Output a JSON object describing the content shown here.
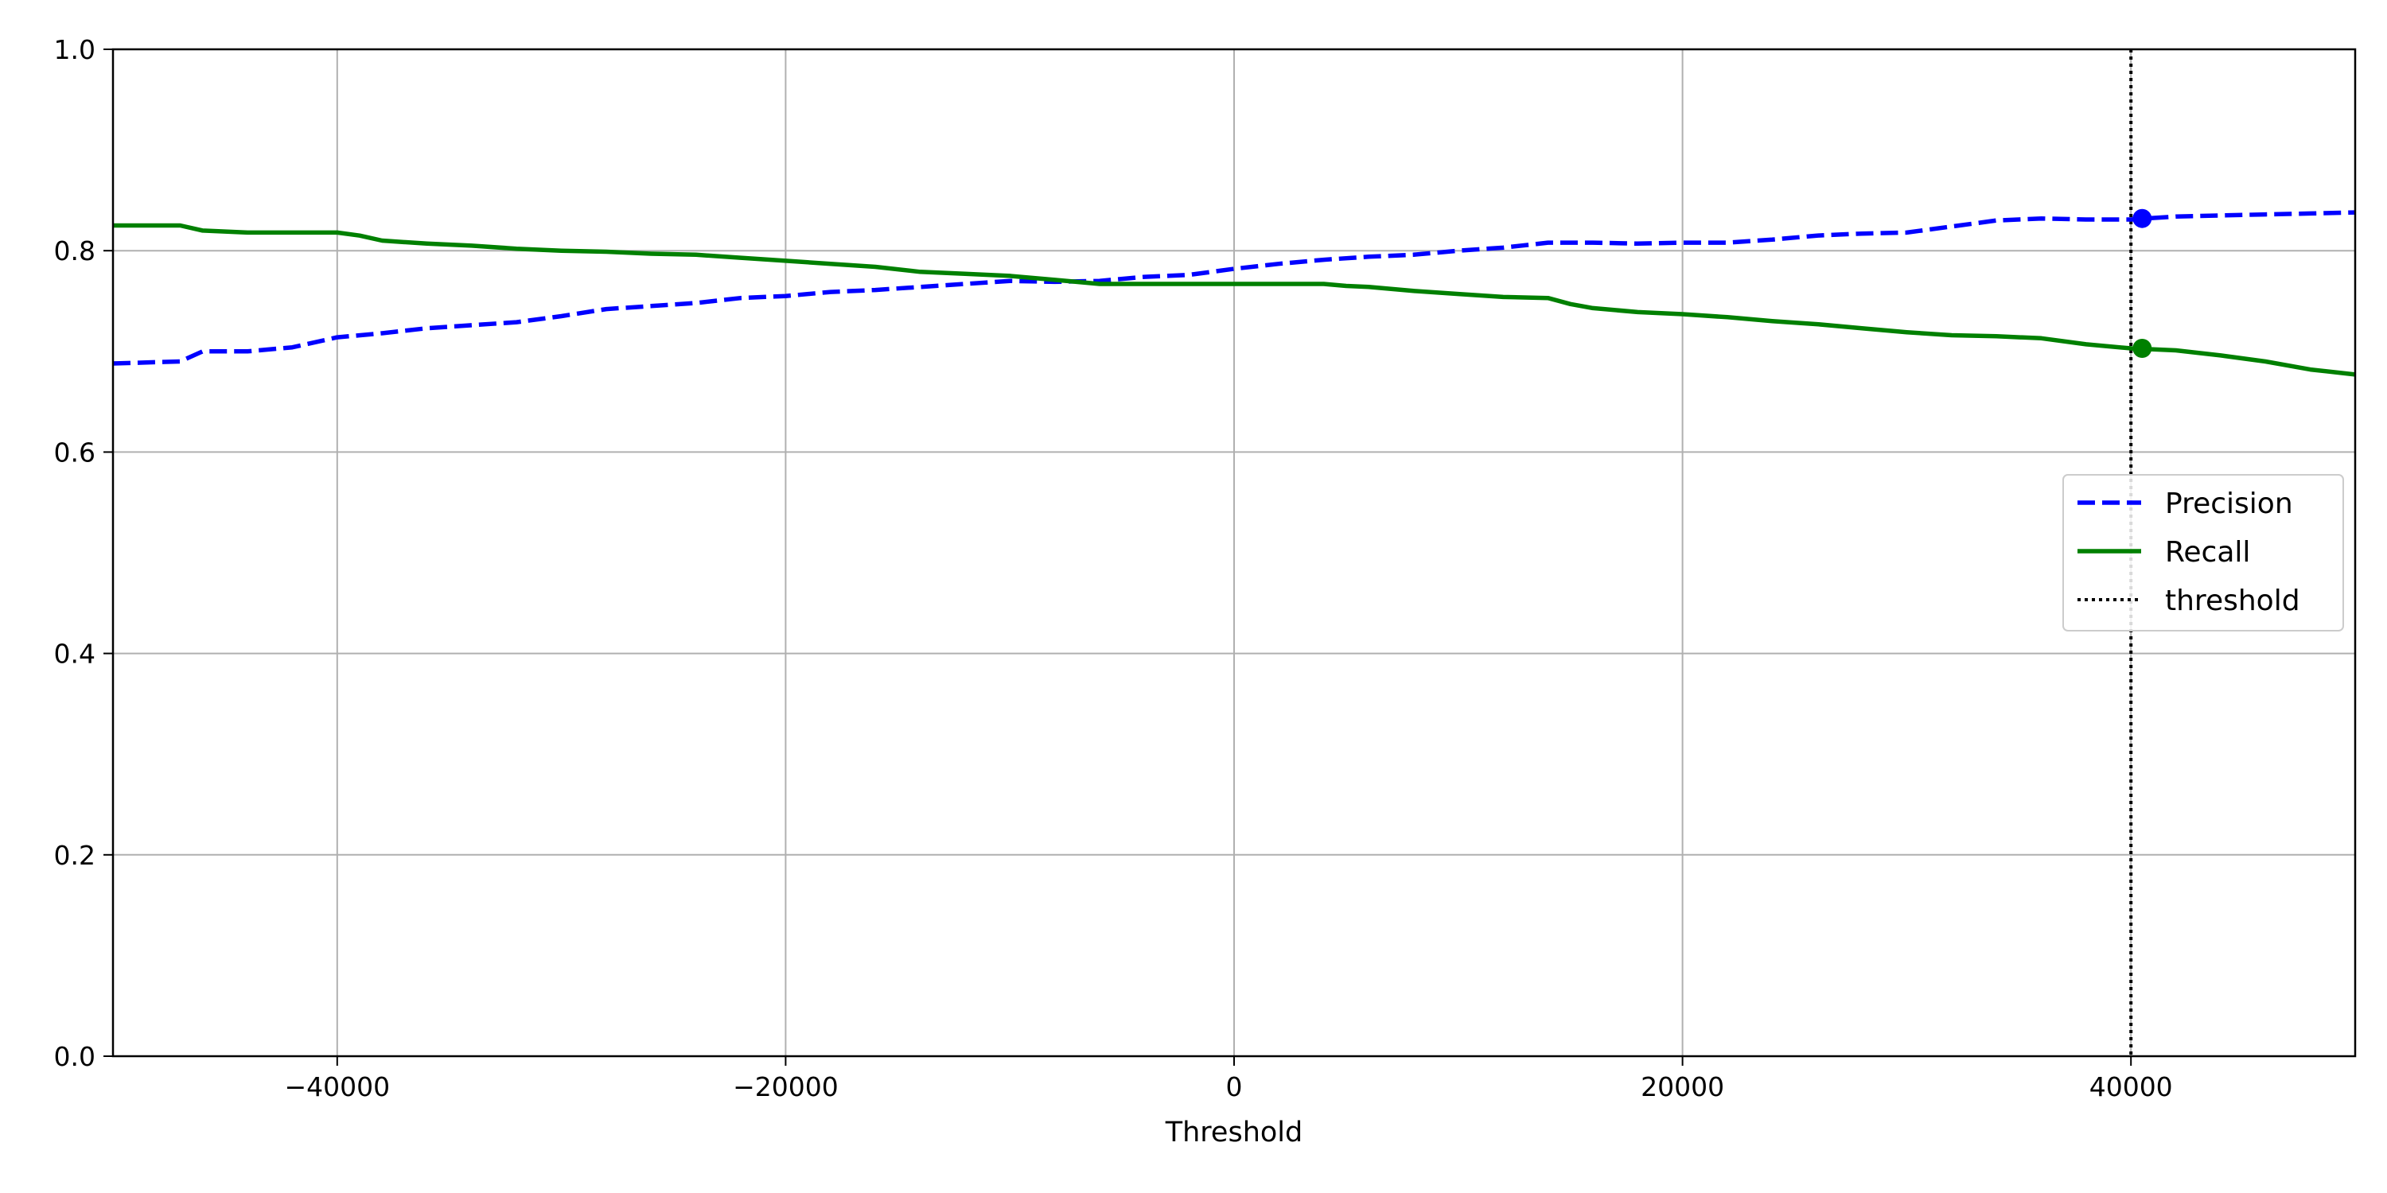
{
  "chart_data": {
    "type": "line",
    "title": "",
    "xlabel": "Threshold",
    "ylabel": "",
    "xlim": [
      -50000,
      50000
    ],
    "ylim": [
      0.0,
      1.0
    ],
    "grid": true,
    "legend_position": "center-right",
    "x_ticks": [
      -40000,
      -20000,
      0,
      20000,
      40000
    ],
    "x_tick_labels": [
      "−40000",
      "−20000",
      "0",
      "20000",
      "40000"
    ],
    "y_ticks": [
      0.0,
      0.2,
      0.4,
      0.6,
      0.8,
      1.0
    ],
    "y_tick_labels": [
      "0.0",
      "0.2",
      "0.4",
      "0.6",
      "0.8",
      "1.0"
    ],
    "series": [
      {
        "name": "Precision",
        "color": "#0000ff",
        "style": "dashed",
        "x": [
          -50000,
          -47000,
          -46000,
          -44000,
          -42000,
          -40000,
          -38000,
          -36000,
          -34000,
          -32000,
          -30000,
          -28000,
          -26000,
          -24000,
          -22000,
          -20000,
          -18000,
          -16000,
          -14000,
          -12000,
          -10000,
          -8000,
          -6000,
          -4000,
          -2000,
          0,
          2000,
          4000,
          6000,
          8000,
          10000,
          12000,
          14000,
          16000,
          18000,
          20000,
          22000,
          24000,
          26000,
          28000,
          30000,
          32000,
          34000,
          36000,
          38000,
          40000,
          42000,
          44000,
          46000,
          48000,
          50000
        ],
        "values": [
          0.688,
          0.69,
          0.7,
          0.7,
          0.704,
          0.714,
          0.718,
          0.723,
          0.726,
          0.729,
          0.735,
          0.742,
          0.745,
          0.748,
          0.753,
          0.755,
          0.759,
          0.761,
          0.764,
          0.767,
          0.77,
          0.769,
          0.77,
          0.774,
          0.776,
          0.782,
          0.787,
          0.791,
          0.794,
          0.796,
          0.8,
          0.803,
          0.808,
          0.808,
          0.807,
          0.808,
          0.808,
          0.811,
          0.815,
          0.817,
          0.818,
          0.824,
          0.83,
          0.832,
          0.831,
          0.831,
          0.834,
          0.835,
          0.836,
          0.837,
          0.838
        ]
      },
      {
        "name": "Recall",
        "color": "#008000",
        "style": "solid",
        "x": [
          -50000,
          -47000,
          -46000,
          -44000,
          -42000,
          -40000,
          -39000,
          -38000,
          -36000,
          -34000,
          -32000,
          -30000,
          -28000,
          -26000,
          -24000,
          -22000,
          -20000,
          -18000,
          -16000,
          -14000,
          -12000,
          -10000,
          -8000,
          -6000,
          -4000,
          -2000,
          0,
          2000,
          4000,
          5000,
          6000,
          8000,
          10000,
          12000,
          14000,
          15000,
          16000,
          18000,
          20000,
          22000,
          24000,
          26000,
          28000,
          30000,
          32000,
          34000,
          36000,
          38000,
          40000,
          42000,
          44000,
          46000,
          48000,
          50000
        ],
        "values": [
          0.825,
          0.825,
          0.82,
          0.818,
          0.818,
          0.818,
          0.815,
          0.81,
          0.807,
          0.805,
          0.802,
          0.8,
          0.799,
          0.797,
          0.796,
          0.793,
          0.79,
          0.787,
          0.784,
          0.779,
          0.777,
          0.775,
          0.771,
          0.767,
          0.767,
          0.767,
          0.767,
          0.767,
          0.767,
          0.765,
          0.764,
          0.76,
          0.757,
          0.754,
          0.753,
          0.747,
          0.743,
          0.739,
          0.737,
          0.734,
          0.73,
          0.727,
          0.723,
          0.719,
          0.716,
          0.715,
          0.713,
          0.707,
          0.703,
          0.701,
          0.696,
          0.69,
          0.682,
          0.677
        ]
      }
    ],
    "threshold": {
      "name": "threshold",
      "x": 40000,
      "color": "#000000",
      "style": "dotted"
    },
    "markers": [
      {
        "series": "Precision",
        "x": 40500,
        "y": 0.832,
        "color": "#0000ff"
      },
      {
        "series": "Recall",
        "x": 40500,
        "y": 0.703,
        "color": "#008000"
      }
    ]
  }
}
